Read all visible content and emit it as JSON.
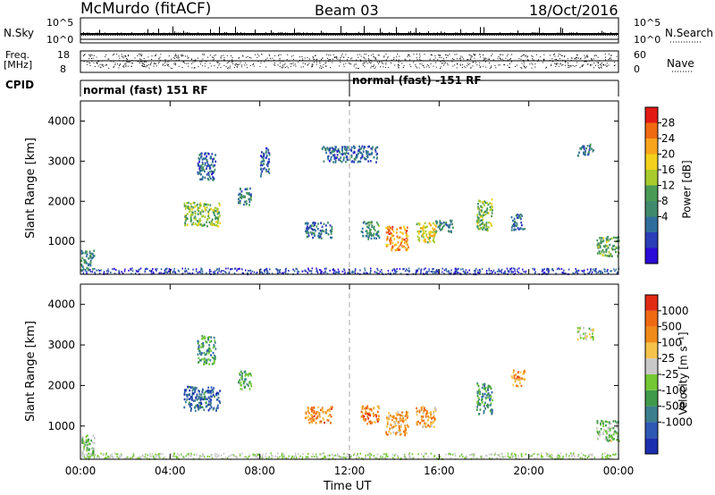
{
  "header": {
    "station": "McMurdo (fitACF)",
    "beam": "Beam 03",
    "date": "18/Oct/2016"
  },
  "nsky_panel": {
    "left_label": "N.Sky",
    "left_ticks": [
      "10^5",
      "10^0"
    ],
    "right_label": "N.Search",
    "right_ticks": [
      "10^5",
      "10^0"
    ]
  },
  "freq_panel": {
    "left_label_1": "Freq.",
    "left_label_2": "[MHz]",
    "left_ticks": [
      "18",
      "8"
    ],
    "right_label": "Nave",
    "right_ticks": [
      "60",
      "0"
    ]
  },
  "cpid_panel": {
    "label": "CPID",
    "segments": [
      "normal (fast) 151 RF",
      "normal (fast) -151 RF"
    ]
  },
  "chart_data": [
    {
      "type": "heatmap",
      "name": "power",
      "xlabel": "",
      "ylabel": "Slant Range [km]",
      "x_range_hours_ut": [
        0,
        24
      ],
      "ylim": [
        180,
        4500
      ],
      "yticks": [
        1000,
        2000,
        3000,
        4000
      ],
      "xtick_labels": [
        "00:00",
        "04:00",
        "08:00",
        "12:00",
        "16:00",
        "20:00",
        "00:00"
      ],
      "colorbar": {
        "label": "Power [dB]",
        "ticks": [
          "28",
          "24",
          "20",
          "16",
          "12",
          "8",
          "4"
        ],
        "colors": [
          "#2a0ad6",
          "#2b3db8",
          "#2f6e9c",
          "#3f8a6c",
          "#4a9a55",
          "#a7cc2c",
          "#f2d21c",
          "#f8a51c",
          "#f06a12",
          "#e21a14"
        ]
      },
      "echo_regions": [
        {
          "t": 0.3,
          "r": 550,
          "w": 0.6,
          "h": 500,
          "v": 0.35
        },
        {
          "t": 5.4,
          "r": 1700,
          "w": 1.6,
          "h": 600,
          "v": 0.5
        },
        {
          "t": 5.6,
          "r": 2900,
          "w": 0.8,
          "h": 700,
          "v": 0.2
        },
        {
          "t": 7.3,
          "r": 2150,
          "w": 0.6,
          "h": 450,
          "v": 0.3
        },
        {
          "t": 8.2,
          "r": 3000,
          "w": 0.4,
          "h": 700,
          "v": 0.2
        },
        {
          "t": 10.6,
          "r": 1300,
          "w": 1.2,
          "h": 400,
          "v": 0.25
        },
        {
          "t": 12.9,
          "r": 1300,
          "w": 0.8,
          "h": 450,
          "v": 0.35
        },
        {
          "t": 14.1,
          "r": 1100,
          "w": 1.0,
          "h": 600,
          "v": 0.8
        },
        {
          "t": 15.4,
          "r": 1250,
          "w": 0.9,
          "h": 500,
          "v": 0.65
        },
        {
          "t": 16.2,
          "r": 1400,
          "w": 0.8,
          "h": 300,
          "v": 0.3
        },
        {
          "t": 18.0,
          "r": 1700,
          "w": 0.7,
          "h": 800,
          "v": 0.5
        },
        {
          "t": 19.5,
          "r": 1500,
          "w": 0.6,
          "h": 400,
          "v": 0.25
        },
        {
          "t": 22.5,
          "r": 3300,
          "w": 0.7,
          "h": 300,
          "v": 0.25
        },
        {
          "t": 23.5,
          "r": 900,
          "w": 1.0,
          "h": 500,
          "v": 0.45
        },
        {
          "t": 12.0,
          "r": 3200,
          "w": 2.5,
          "h": 400,
          "v": 0.2
        }
      ]
    },
    {
      "type": "heatmap",
      "name": "velocity",
      "xlabel": "Time UT",
      "ylabel": "Slant Range [km]",
      "x_range_hours_ut": [
        0,
        24
      ],
      "ylim": [
        180,
        4500
      ],
      "yticks": [
        1000,
        2000,
        3000,
        4000
      ],
      "xtick_labels": [
        "00:00",
        "04:00",
        "08:00",
        "12:00",
        "16:00",
        "20:00",
        "00:00"
      ],
      "colorbar": {
        "label": "Velocity [m s⁻¹]",
        "ticks": [
          "1000",
          "500",
          "100",
          "25",
          "-25",
          "-100",
          "-500",
          "-1000"
        ],
        "colors": [
          "#1b2fae",
          "#2f58b4",
          "#3c7e8e",
          "#3f9a4a",
          "#74c834",
          "#c8c8c8",
          "#f5c34a",
          "#f08a18",
          "#ee6a10",
          "#e02a14"
        ]
      },
      "echo_regions": [
        {
          "t": 0.3,
          "r": 550,
          "w": 0.6,
          "h": 500,
          "v": 0.45
        },
        {
          "t": 5.4,
          "r": 1700,
          "w": 1.6,
          "h": 600,
          "v": 0.15
        },
        {
          "t": 5.6,
          "r": 2900,
          "w": 0.8,
          "h": 700,
          "v": 0.3
        },
        {
          "t": 7.3,
          "r": 2150,
          "w": 0.6,
          "h": 450,
          "v": 0.35
        },
        {
          "t": 10.6,
          "r": 1300,
          "w": 1.2,
          "h": 400,
          "v": 0.8
        },
        {
          "t": 12.9,
          "r": 1300,
          "w": 0.8,
          "h": 450,
          "v": 0.8
        },
        {
          "t": 14.1,
          "r": 1100,
          "w": 1.0,
          "h": 600,
          "v": 0.75
        },
        {
          "t": 15.4,
          "r": 1250,
          "w": 0.9,
          "h": 500,
          "v": 0.75
        },
        {
          "t": 18.0,
          "r": 1700,
          "w": 0.7,
          "h": 800,
          "v": 0.3
        },
        {
          "t": 19.5,
          "r": 2200,
          "w": 0.6,
          "h": 400,
          "v": 0.8
        },
        {
          "t": 23.5,
          "r": 900,
          "w": 1.0,
          "h": 500,
          "v": 0.45
        },
        {
          "t": 22.5,
          "r": 3300,
          "w": 0.7,
          "h": 300,
          "v": 0.55
        }
      ]
    }
  ]
}
